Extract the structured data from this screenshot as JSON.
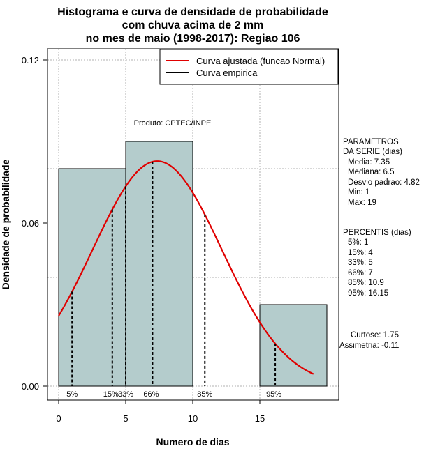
{
  "chart_data": {
    "type": "bar",
    "title_lines": [
      "Histograma e curva de densidade de probabilidade",
      "com chuva acima de 2 mm",
      "no mes de maio (1998-2017): Regiao 106"
    ],
    "xlabel": "Numero de dias",
    "ylabel": "Densidade de probabilidade",
    "xlim": [
      -1,
      20.5
    ],
    "ylim": [
      0,
      0.12
    ],
    "x_ticks": [
      0,
      5,
      10,
      15
    ],
    "y_ticks": [
      0.0,
      0.06,
      0.12
    ],
    "y_tick_labels": [
      "0.00",
      "0.06",
      "0.12"
    ],
    "grid": true,
    "bars": [
      {
        "start": 0,
        "end": 5,
        "density": 0.08
      },
      {
        "start": 5,
        "end": 10,
        "density": 0.09
      },
      {
        "start": 10,
        "end": 15,
        "density": 0.0
      },
      {
        "start": 15,
        "end": 20,
        "density": 0.03
      }
    ],
    "bar_color": "#b4cccc",
    "curve": {
      "name": "Curva ajustada (funcao Normal)",
      "color": "#e00000",
      "mean": 7.35,
      "sd": 4.82,
      "x_from": 0,
      "x_to": 19
    },
    "empirical_legend": {
      "name": "Curva empirica",
      "color": "#000000"
    },
    "percentile_lines": [
      {
        "label": "5%",
        "x": 1
      },
      {
        "label": "15%",
        "x": 4
      },
      {
        "label": "33%",
        "x": 5
      },
      {
        "label": "66%",
        "x": 7
      },
      {
        "label": "85%",
        "x": 10.9
      },
      {
        "label": "95%",
        "x": 16.15
      }
    ],
    "watermark": "Produto: CPTEC/INPE",
    "legend_position": "top-right"
  },
  "side_panel": {
    "parametros": [
      "PARAMETROS",
      "DA SERIE (dias)",
      "Media: 7.35",
      "Mediana: 6.5",
      "Desvio padrao: 4.82",
      "Min: 1",
      "Max: 19"
    ],
    "percentis": [
      "PERCENTIS (dias)",
      "5%: 1",
      "15%: 4",
      "33%: 5",
      "66%: 7",
      "85%: 10.9",
      "95%: 16.15"
    ],
    "shape": [
      "Curtose: 1.75",
      "Assimetria: -0.11"
    ]
  }
}
